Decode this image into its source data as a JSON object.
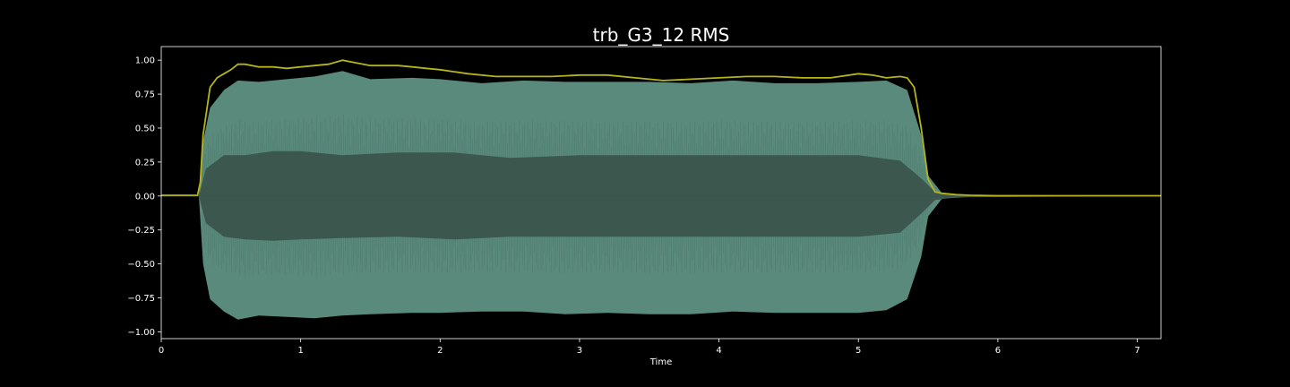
{
  "chart_data": {
    "type": "area",
    "title": "trb_G3_12 RMS",
    "xlabel": "Time",
    "ylabel": "",
    "xlim": [
      0,
      7.17
    ],
    "ylim": [
      -1.05,
      1.1
    ],
    "x_ticks": [
      0,
      1,
      2,
      3,
      4,
      5,
      6,
      7
    ],
    "x_tick_labels": [
      "0",
      "1",
      "2",
      "3",
      "4",
      "5",
      "6",
      "7"
    ],
    "y_ticks": [
      1.0,
      0.75,
      0.5,
      0.25,
      0.0,
      -0.25,
      -0.5,
      -0.75,
      -1.0
    ],
    "y_tick_labels": [
      "1.00",
      "0.75",
      "0.50",
      "0.25",
      "0.00",
      "−0.25",
      "−0.50",
      "−0.75",
      "−1.00"
    ],
    "grid": false,
    "colors": {
      "background": "#000000",
      "axes_edge": "#ffffff",
      "text": "#ffffff",
      "waveform_outer": "#5a8a7c",
      "waveform_inner": "#3b574e",
      "rms_line": "#b5b51a"
    },
    "waveform_peak": {
      "x": [
        0,
        0.27,
        0.3,
        0.35,
        0.45,
        0.55,
        0.7,
        0.9,
        1.1,
        1.3,
        1.5,
        1.8,
        2.0,
        2.3,
        2.6,
        2.9,
        3.2,
        3.5,
        3.8,
        4.1,
        4.4,
        4.7,
        5.0,
        5.2,
        5.35,
        5.45,
        5.5,
        5.6,
        5.75,
        5.9,
        6.2,
        7.17
      ],
      "upper": [
        0,
        0,
        0.4,
        0.65,
        0.78,
        0.85,
        0.84,
        0.86,
        0.88,
        0.92,
        0.86,
        0.87,
        0.86,
        0.83,
        0.85,
        0.84,
        0.84,
        0.84,
        0.83,
        0.85,
        0.83,
        0.83,
        0.84,
        0.85,
        0.78,
        0.45,
        0.15,
        0.02,
        0.01,
        0.005,
        0,
        0
      ],
      "lower": [
        0,
        0,
        -0.5,
        -0.76,
        -0.85,
        -0.91,
        -0.88,
        -0.89,
        -0.9,
        -0.88,
        -0.87,
        -0.86,
        -0.86,
        -0.85,
        -0.85,
        -0.87,
        -0.86,
        -0.87,
        -0.87,
        -0.85,
        -0.86,
        -0.86,
        -0.86,
        -0.84,
        -0.76,
        -0.45,
        -0.15,
        -0.02,
        -0.01,
        -0.005,
        0,
        0
      ]
    },
    "waveform_core": {
      "x": [
        0,
        0.27,
        0.32,
        0.45,
        0.6,
        0.8,
        1.0,
        1.3,
        1.7,
        2.1,
        2.5,
        3.0,
        3.5,
        4.0,
        4.5,
        5.0,
        5.3,
        5.45,
        5.55,
        5.7,
        7.17
      ],
      "upper": [
        0,
        0,
        0.2,
        0.3,
        0.3,
        0.33,
        0.33,
        0.3,
        0.32,
        0.32,
        0.28,
        0.3,
        0.3,
        0.3,
        0.3,
        0.3,
        0.26,
        0.13,
        0.03,
        0.01,
        0
      ],
      "lower": [
        0,
        0,
        -0.2,
        -0.3,
        -0.32,
        -0.33,
        -0.32,
        -0.31,
        -0.3,
        -0.32,
        -0.3,
        -0.3,
        -0.3,
        -0.3,
        -0.3,
        -0.3,
        -0.27,
        -0.13,
        -0.03,
        -0.01,
        0
      ]
    },
    "series": [
      {
        "values_x": [
          0,
          0.26,
          0.28,
          0.3,
          0.35,
          0.4,
          0.45,
          0.5,
          0.55,
          0.6,
          0.7,
          0.8,
          0.9,
          1.0,
          1.1,
          1.2,
          1.3,
          1.4,
          1.5,
          1.6,
          1.7,
          1.8,
          1.9,
          2.0,
          2.2,
          2.4,
          2.6,
          2.8,
          3.0,
          3.2,
          3.4,
          3.6,
          3.8,
          4.0,
          4.2,
          4.4,
          4.6,
          4.8,
          5.0,
          5.1,
          5.2,
          5.3,
          5.35,
          5.4,
          5.45,
          5.5,
          5.55,
          5.6,
          5.7,
          5.8,
          6.0,
          7.17
        ],
        "values_y": [
          0.005,
          0.005,
          0.1,
          0.45,
          0.8,
          0.87,
          0.9,
          0.93,
          0.97,
          0.97,
          0.95,
          0.95,
          0.94,
          0.95,
          0.96,
          0.97,
          1.0,
          0.98,
          0.96,
          0.96,
          0.96,
          0.95,
          0.94,
          0.93,
          0.9,
          0.88,
          0.88,
          0.88,
          0.89,
          0.89,
          0.87,
          0.85,
          0.86,
          0.87,
          0.88,
          0.88,
          0.87,
          0.87,
          0.9,
          0.89,
          0.87,
          0.88,
          0.87,
          0.8,
          0.5,
          0.12,
          0.03,
          0.02,
          0.01,
          0.005,
          0.002,
          0.002
        ]
      }
    ]
  }
}
